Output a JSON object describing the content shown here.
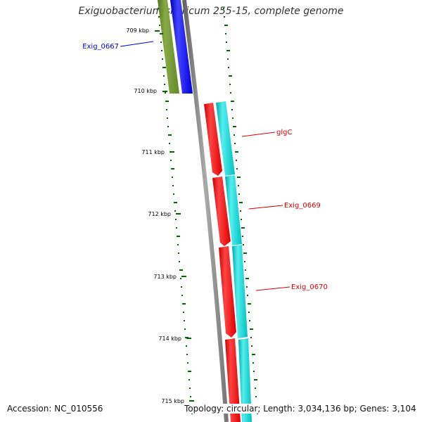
{
  "title": "Exiguobacterium sibiricum 255-15, complete genome",
  "accession": "Accession: NC_010556",
  "topology": "Topology: circular; Length: 3,034,136 bp; Genes: 3,104",
  "ticks": [
    "709 kbp",
    "710 kbp",
    "711 kbp",
    "712 kbp",
    "713 kbp",
    "714 kbp",
    "715 kbp"
  ],
  "genes": [
    {
      "label": "Exig_0667",
      "color": "#0000cc",
      "strand": "reverse"
    },
    {
      "label": "glgC",
      "color": "#dd0000",
      "strand": "forward"
    },
    {
      "label": "Exig_0669",
      "color": "#dd0000",
      "strand": "forward"
    },
    {
      "label": "Exig_0670",
      "color": "#dd0000",
      "strand": "forward"
    }
  ],
  "colors": {
    "backbone": "#888888",
    "cds_forward": "#ff0000",
    "cds_reverse": "#0000ff",
    "track_forward": "#00cccc",
    "track_reverse": "#6b8e23",
    "gc_ticks": "#006600"
  }
}
